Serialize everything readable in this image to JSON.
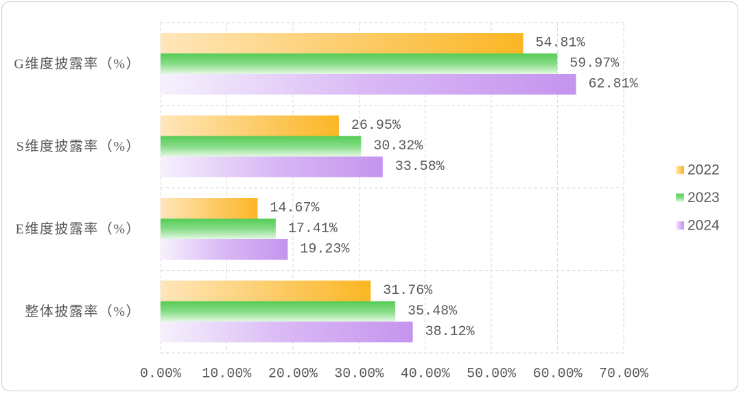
{
  "chart_data": {
    "type": "bar",
    "orientation": "horizontal",
    "categories": [
      "G维度披露率（%）",
      "S维度披露率（%）",
      "E维度披露率（%）",
      "整体披露率（%）"
    ],
    "series": [
      {
        "name": "2022",
        "values": [
          54.81,
          26.95,
          14.67,
          31.76
        ],
        "labels": [
          "54.81%",
          "26.95%",
          "14.67%",
          "31.76%"
        ],
        "colors": [
          "#FFE6BA",
          "#FBB624"
        ]
      },
      {
        "name": "2023",
        "values": [
          59.97,
          30.32,
          17.41,
          35.48
        ],
        "labels": [
          "59.97%",
          "30.32%",
          "17.41%",
          "35.48%"
        ],
        "colors": [
          "#55CB55",
          "#86DC86",
          "#E4F8E4"
        ]
      },
      {
        "name": "2024",
        "values": [
          62.81,
          33.58,
          19.23,
          38.12
        ],
        "labels": [
          "62.81%",
          "33.58%",
          "19.23%",
          "38.12%"
        ],
        "colors": [
          "#F6F1FD",
          "#D9B8F5",
          "#C594EE"
        ]
      }
    ],
    "xlim": [
      0,
      70
    ],
    "xticks": [
      0,
      10,
      20,
      30,
      40,
      50,
      60,
      70
    ],
    "xtick_labels": [
      "0.00%",
      "10.00%",
      "20.00%",
      "30.00%",
      "40.00%",
      "50.00%",
      "60.00%",
      "70.00%"
    ],
    "grid": true,
    "legend": "right"
  }
}
